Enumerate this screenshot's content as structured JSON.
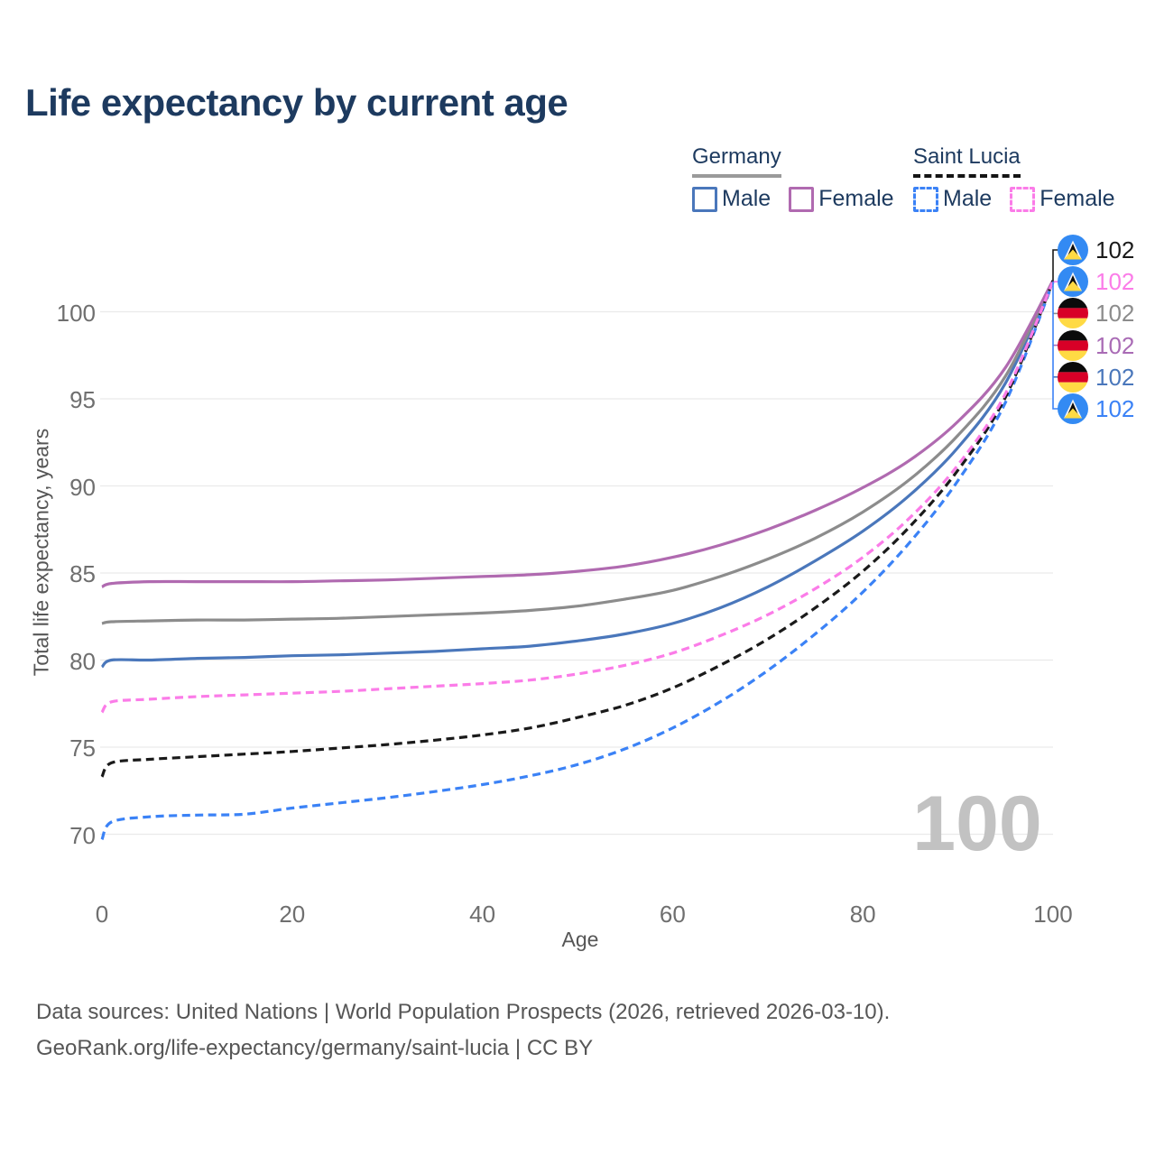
{
  "title": "Life expectancy by current age",
  "legend": {
    "groups": [
      {
        "label": "Germany",
        "line_style": "solid",
        "underline_color": "#9a9a9a",
        "items": [
          {
            "label": "Male",
            "color": "#4a77bb"
          },
          {
            "label": "Female",
            "color": "#b06ab0"
          }
        ]
      },
      {
        "label": "Saint Lucia",
        "line_style": "dashed",
        "underline_color": "#141414",
        "items": [
          {
            "label": "Male",
            "color": "#3b82f6"
          },
          {
            "label": "Female",
            "color": "#fb7ce8"
          }
        ]
      }
    ]
  },
  "end_labels": [
    {
      "value": "102",
      "flag": "saint-lucia",
      "series": "Saint Lucia Total",
      "color": "#1a1a1a"
    },
    {
      "value": "102",
      "flag": "saint-lucia",
      "series": "Saint Lucia Female",
      "color": "#fb7ce8"
    },
    {
      "value": "102",
      "flag": "germany",
      "series": "Germany Total",
      "color": "#8c8c8c"
    },
    {
      "value": "102",
      "flag": "germany",
      "series": "Germany Female",
      "color": "#a96bb5"
    },
    {
      "value": "102",
      "flag": "germany",
      "series": "Germany Male",
      "color": "#4a77bb"
    },
    {
      "value": "102",
      "flag": "saint-lucia",
      "series": "Saint Lucia Male",
      "color": "#3b82f6"
    }
  ],
  "watermark": "100",
  "footer": {
    "line1": "Data sources: United Nations | World Population Prospects (2026, retrieved 2026-03-10).",
    "line2": "GeoRank.org/life-expectancy/germany/saint-lucia | CC BY"
  },
  "chart_data": {
    "type": "line",
    "title": "Life expectancy by current age",
    "xlabel": "Age",
    "ylabel": "Total life expectancy, years",
    "xlim": [
      0,
      100
    ],
    "ylim": [
      68.5,
      103
    ],
    "xticks": [
      0,
      20,
      40,
      60,
      80,
      100
    ],
    "yticks": [
      70,
      75,
      80,
      85,
      90,
      95,
      100
    ],
    "grid": "horizontal",
    "legend_position": "top-right",
    "end_value_label": 102,
    "x": [
      0,
      1,
      5,
      10,
      15,
      20,
      25,
      30,
      35,
      40,
      45,
      50,
      55,
      60,
      65,
      70,
      75,
      80,
      85,
      90,
      95,
      100
    ],
    "series": [
      {
        "name": "Germany Male",
        "country": "Germany",
        "sex": "Male",
        "color": "#4a77bb",
        "dashed": false,
        "values": [
          79.6,
          80.0,
          80.0,
          80.1,
          80.15,
          80.25,
          80.3,
          80.4,
          80.5,
          80.65,
          80.8,
          81.1,
          81.5,
          82.1,
          83.0,
          84.2,
          85.7,
          87.4,
          89.5,
          92.2,
          95.9,
          101.8
        ]
      },
      {
        "name": "Germany Total",
        "country": "Germany",
        "sex": "Total",
        "color": "#8c8c8c",
        "dashed": false,
        "values": [
          82.1,
          82.2,
          82.25,
          82.3,
          82.3,
          82.35,
          82.4,
          82.5,
          82.6,
          82.7,
          82.85,
          83.1,
          83.5,
          84.0,
          84.8,
          85.8,
          87.0,
          88.5,
          90.4,
          92.9,
          96.3,
          101.8
        ]
      },
      {
        "name": "Germany Female",
        "country": "Germany",
        "sex": "Female",
        "color": "#b06ab0",
        "dashed": false,
        "values": [
          84.2,
          84.4,
          84.5,
          84.5,
          84.5,
          84.5,
          84.55,
          84.6,
          84.7,
          84.8,
          84.9,
          85.1,
          85.4,
          85.9,
          86.6,
          87.5,
          88.6,
          89.9,
          91.5,
          93.7,
          96.8,
          101.8
        ]
      },
      {
        "name": "Saint Lucia Male",
        "country": "Saint Lucia",
        "sex": "Male",
        "color": "#3b82f6",
        "dashed": true,
        "values": [
          69.7,
          70.7,
          71.0,
          71.1,
          71.15,
          71.5,
          71.8,
          72.1,
          72.45,
          72.85,
          73.35,
          74.0,
          74.9,
          76.1,
          77.6,
          79.4,
          81.5,
          83.9,
          86.8,
          90.3,
          94.8,
          101.7
        ]
      },
      {
        "name": "Saint Lucia Total",
        "country": "Saint Lucia",
        "sex": "Total",
        "color": "#1a1a1a",
        "dashed": true,
        "values": [
          73.3,
          74.1,
          74.3,
          74.45,
          74.6,
          74.75,
          74.95,
          75.15,
          75.4,
          75.7,
          76.1,
          76.7,
          77.4,
          78.4,
          79.7,
          81.2,
          83.0,
          85.1,
          87.7,
          90.9,
          95.1,
          101.75
        ]
      },
      {
        "name": "Saint Lucia Female",
        "country": "Saint Lucia",
        "sex": "Female",
        "color": "#fb7ce8",
        "dashed": true,
        "values": [
          77.0,
          77.6,
          77.75,
          77.9,
          78.0,
          78.1,
          78.2,
          78.35,
          78.5,
          78.65,
          78.85,
          79.2,
          79.7,
          80.4,
          81.4,
          82.6,
          84.1,
          85.9,
          88.2,
          91.2,
          95.3,
          101.75
        ]
      }
    ]
  }
}
